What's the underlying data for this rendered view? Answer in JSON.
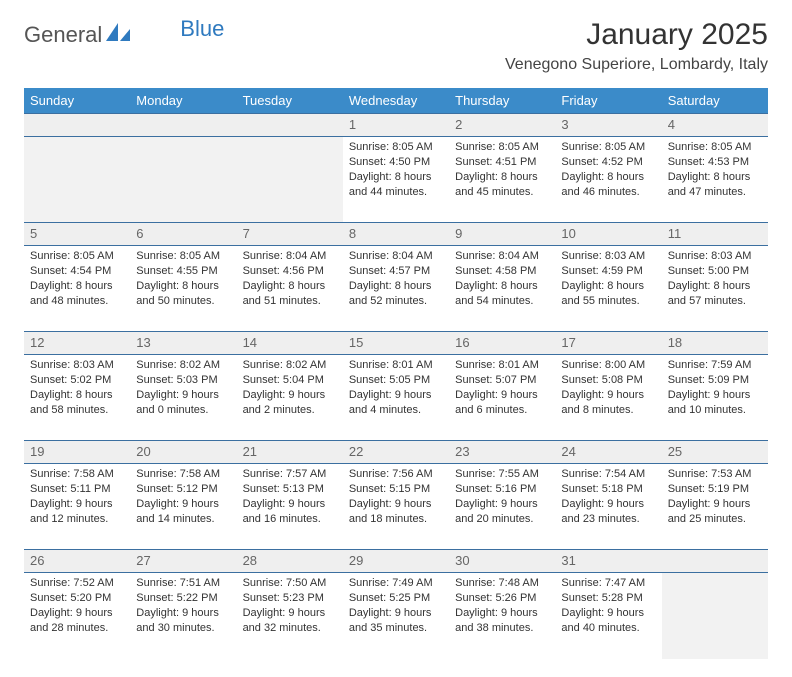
{
  "brand": {
    "part1": "General",
    "part2": "Blue"
  },
  "title": "January 2025",
  "location": "Venegono Superiore, Lombardy, Italy",
  "colors": {
    "header_bg": "#3b8bc9",
    "header_text": "#ffffff",
    "row_border": "#3b6fa0",
    "daynum_bg": "#efefef",
    "brand_blue": "#2f7abf",
    "text": "#333333"
  },
  "day_labels": [
    "Sunday",
    "Monday",
    "Tuesday",
    "Wednesday",
    "Thursday",
    "Friday",
    "Saturday"
  ],
  "weeks": [
    [
      null,
      null,
      null,
      {
        "n": "1",
        "sr": "Sunrise: 8:05 AM",
        "ss": "Sunset: 4:50 PM",
        "d1": "Daylight: 8 hours",
        "d2": "and 44 minutes."
      },
      {
        "n": "2",
        "sr": "Sunrise: 8:05 AM",
        "ss": "Sunset: 4:51 PM",
        "d1": "Daylight: 8 hours",
        "d2": "and 45 minutes."
      },
      {
        "n": "3",
        "sr": "Sunrise: 8:05 AM",
        "ss": "Sunset: 4:52 PM",
        "d1": "Daylight: 8 hours",
        "d2": "and 46 minutes."
      },
      {
        "n": "4",
        "sr": "Sunrise: 8:05 AM",
        "ss": "Sunset: 4:53 PM",
        "d1": "Daylight: 8 hours",
        "d2": "and 47 minutes."
      }
    ],
    [
      {
        "n": "5",
        "sr": "Sunrise: 8:05 AM",
        "ss": "Sunset: 4:54 PM",
        "d1": "Daylight: 8 hours",
        "d2": "and 48 minutes."
      },
      {
        "n": "6",
        "sr": "Sunrise: 8:05 AM",
        "ss": "Sunset: 4:55 PM",
        "d1": "Daylight: 8 hours",
        "d2": "and 50 minutes."
      },
      {
        "n": "7",
        "sr": "Sunrise: 8:04 AM",
        "ss": "Sunset: 4:56 PM",
        "d1": "Daylight: 8 hours",
        "d2": "and 51 minutes."
      },
      {
        "n": "8",
        "sr": "Sunrise: 8:04 AM",
        "ss": "Sunset: 4:57 PM",
        "d1": "Daylight: 8 hours",
        "d2": "and 52 minutes."
      },
      {
        "n": "9",
        "sr": "Sunrise: 8:04 AM",
        "ss": "Sunset: 4:58 PM",
        "d1": "Daylight: 8 hours",
        "d2": "and 54 minutes."
      },
      {
        "n": "10",
        "sr": "Sunrise: 8:03 AM",
        "ss": "Sunset: 4:59 PM",
        "d1": "Daylight: 8 hours",
        "d2": "and 55 minutes."
      },
      {
        "n": "11",
        "sr": "Sunrise: 8:03 AM",
        "ss": "Sunset: 5:00 PM",
        "d1": "Daylight: 8 hours",
        "d2": "and 57 minutes."
      }
    ],
    [
      {
        "n": "12",
        "sr": "Sunrise: 8:03 AM",
        "ss": "Sunset: 5:02 PM",
        "d1": "Daylight: 8 hours",
        "d2": "and 58 minutes."
      },
      {
        "n": "13",
        "sr": "Sunrise: 8:02 AM",
        "ss": "Sunset: 5:03 PM",
        "d1": "Daylight: 9 hours",
        "d2": "and 0 minutes."
      },
      {
        "n": "14",
        "sr": "Sunrise: 8:02 AM",
        "ss": "Sunset: 5:04 PM",
        "d1": "Daylight: 9 hours",
        "d2": "and 2 minutes."
      },
      {
        "n": "15",
        "sr": "Sunrise: 8:01 AM",
        "ss": "Sunset: 5:05 PM",
        "d1": "Daylight: 9 hours",
        "d2": "and 4 minutes."
      },
      {
        "n": "16",
        "sr": "Sunrise: 8:01 AM",
        "ss": "Sunset: 5:07 PM",
        "d1": "Daylight: 9 hours",
        "d2": "and 6 minutes."
      },
      {
        "n": "17",
        "sr": "Sunrise: 8:00 AM",
        "ss": "Sunset: 5:08 PM",
        "d1": "Daylight: 9 hours",
        "d2": "and 8 minutes."
      },
      {
        "n": "18",
        "sr": "Sunrise: 7:59 AM",
        "ss": "Sunset: 5:09 PM",
        "d1": "Daylight: 9 hours",
        "d2": "and 10 minutes."
      }
    ],
    [
      {
        "n": "19",
        "sr": "Sunrise: 7:58 AM",
        "ss": "Sunset: 5:11 PM",
        "d1": "Daylight: 9 hours",
        "d2": "and 12 minutes."
      },
      {
        "n": "20",
        "sr": "Sunrise: 7:58 AM",
        "ss": "Sunset: 5:12 PM",
        "d1": "Daylight: 9 hours",
        "d2": "and 14 minutes."
      },
      {
        "n": "21",
        "sr": "Sunrise: 7:57 AM",
        "ss": "Sunset: 5:13 PM",
        "d1": "Daylight: 9 hours",
        "d2": "and 16 minutes."
      },
      {
        "n": "22",
        "sr": "Sunrise: 7:56 AM",
        "ss": "Sunset: 5:15 PM",
        "d1": "Daylight: 9 hours",
        "d2": "and 18 minutes."
      },
      {
        "n": "23",
        "sr": "Sunrise: 7:55 AM",
        "ss": "Sunset: 5:16 PM",
        "d1": "Daylight: 9 hours",
        "d2": "and 20 minutes."
      },
      {
        "n": "24",
        "sr": "Sunrise: 7:54 AM",
        "ss": "Sunset: 5:18 PM",
        "d1": "Daylight: 9 hours",
        "d2": "and 23 minutes."
      },
      {
        "n": "25",
        "sr": "Sunrise: 7:53 AM",
        "ss": "Sunset: 5:19 PM",
        "d1": "Daylight: 9 hours",
        "d2": "and 25 minutes."
      }
    ],
    [
      {
        "n": "26",
        "sr": "Sunrise: 7:52 AM",
        "ss": "Sunset: 5:20 PM",
        "d1": "Daylight: 9 hours",
        "d2": "and 28 minutes."
      },
      {
        "n": "27",
        "sr": "Sunrise: 7:51 AM",
        "ss": "Sunset: 5:22 PM",
        "d1": "Daylight: 9 hours",
        "d2": "and 30 minutes."
      },
      {
        "n": "28",
        "sr": "Sunrise: 7:50 AM",
        "ss": "Sunset: 5:23 PM",
        "d1": "Daylight: 9 hours",
        "d2": "and 32 minutes."
      },
      {
        "n": "29",
        "sr": "Sunrise: 7:49 AM",
        "ss": "Sunset: 5:25 PM",
        "d1": "Daylight: 9 hours",
        "d2": "and 35 minutes."
      },
      {
        "n": "30",
        "sr": "Sunrise: 7:48 AM",
        "ss": "Sunset: 5:26 PM",
        "d1": "Daylight: 9 hours",
        "d2": "and 38 minutes."
      },
      {
        "n": "31",
        "sr": "Sunrise: 7:47 AM",
        "ss": "Sunset: 5:28 PM",
        "d1": "Daylight: 9 hours",
        "d2": "and 40 minutes."
      },
      null
    ]
  ]
}
